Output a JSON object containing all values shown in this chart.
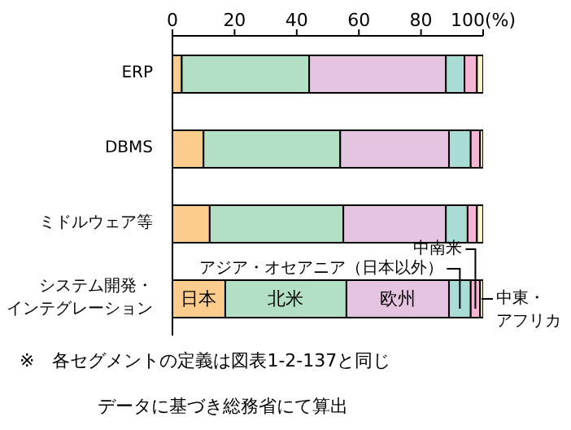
{
  "chart_data": {
    "type": "bar",
    "orientation": "horizontal",
    "stacked": true,
    "categories": [
      "ERP",
      "DBMS",
      "ミドルウェア等",
      "システム開発・インテグレーション"
    ],
    "series": [
      {
        "name": "日本",
        "color": "#fccc8c",
        "values": [
          3,
          10,
          12,
          17
        ]
      },
      {
        "name": "北米",
        "color": "#b3e0c4",
        "values": [
          41,
          44,
          43,
          39
        ]
      },
      {
        "name": "欧州",
        "color": "#e4c4e0",
        "values": [
          44,
          35,
          33,
          33
        ]
      },
      {
        "name": "アジア・オセアニア（日本以外）",
        "color": "#a8dcd4",
        "values": [
          6,
          7,
          7,
          7
        ]
      },
      {
        "name": "中南米",
        "color": "#f4b4d4",
        "values": [
          4,
          3,
          3,
          3
        ]
      },
      {
        "name": "中東・アフリカ",
        "color": "#fcf4c4",
        "values": [
          2,
          1,
          2,
          1
        ]
      }
    ],
    "xlim": [
      0,
      100
    ],
    "xticks": [
      0,
      20,
      40,
      60,
      80,
      {
        "value": 100,
        "label": "100(%)"
      }
    ],
    "annotations": [
      "※　各セグメントの定義は図表1-2-137と同じ",
      "データに基づき総務省にて算出"
    ]
  }
}
